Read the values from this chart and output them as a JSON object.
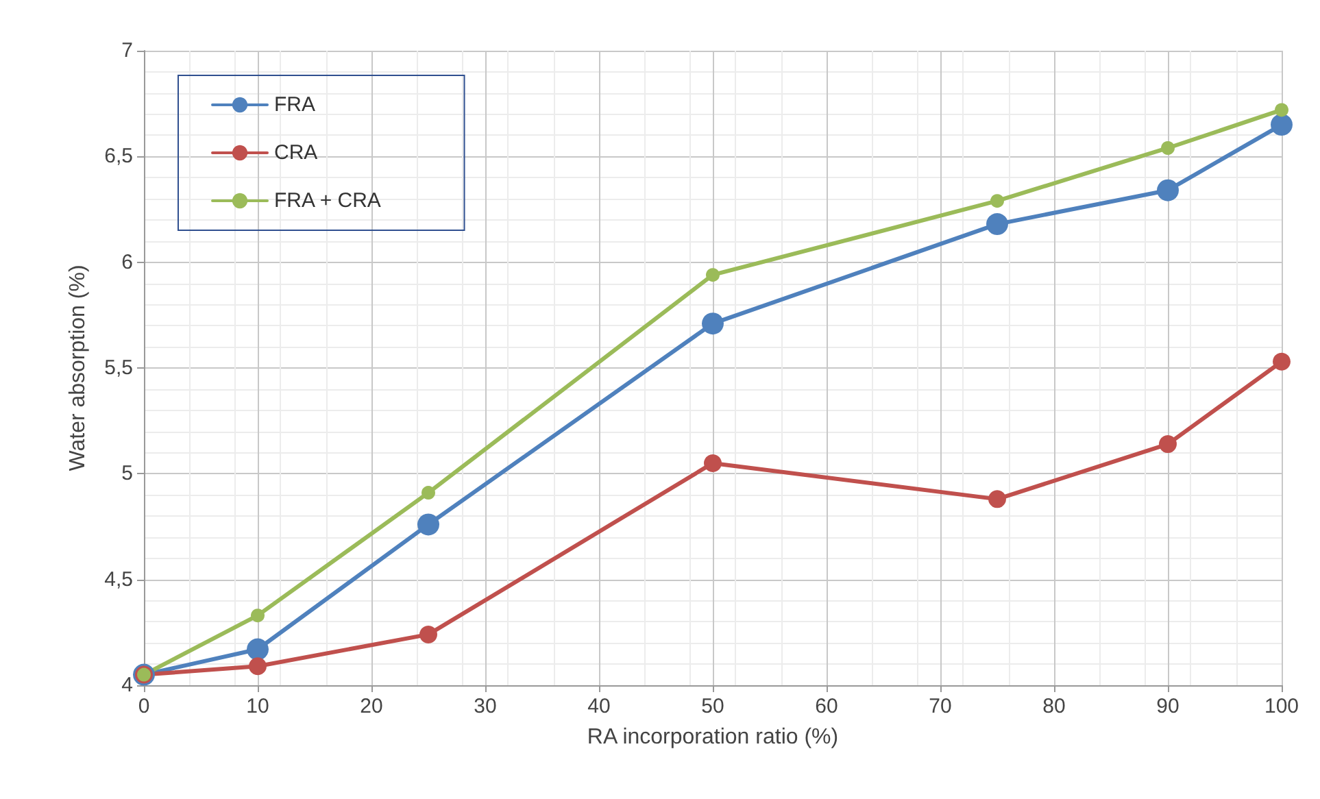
{
  "chart_data": {
    "type": "line",
    "xlabel": "RA incorporation ratio (%)",
    "ylabel": "Water absorption (%)",
    "x": [
      0,
      10,
      25,
      50,
      75,
      90,
      100
    ],
    "series": [
      {
        "name": "FRA",
        "color": "#4f81bd",
        "values": [
          4.05,
          4.17,
          4.76,
          5.71,
          6.18,
          6.34,
          6.65
        ]
      },
      {
        "name": "CRA",
        "color": "#c0504d",
        "values": [
          4.05,
          4.09,
          4.24,
          5.05,
          4.88,
          5.14,
          5.53
        ]
      },
      {
        "name": "FRA + CRA",
        "color": "#9bbb59",
        "values": [
          4.05,
          4.33,
          4.91,
          5.94,
          6.29,
          6.54,
          6.72
        ]
      }
    ],
    "xlim": [
      0,
      100
    ],
    "xticks": [
      0,
      10,
      20,
      30,
      40,
      50,
      60,
      70,
      80,
      90,
      100
    ],
    "ylim": [
      4,
      7
    ],
    "yticks": [
      4,
      {
        "value": 4.5,
        "label": "4,5"
      },
      5,
      {
        "value": 5.5,
        "label": "5,5"
      },
      6,
      {
        "value": 6.5,
        "label": "6,5"
      },
      7
    ],
    "grid": true,
    "legend": "top left",
    "marker": "circle",
    "line_style": "solid"
  }
}
